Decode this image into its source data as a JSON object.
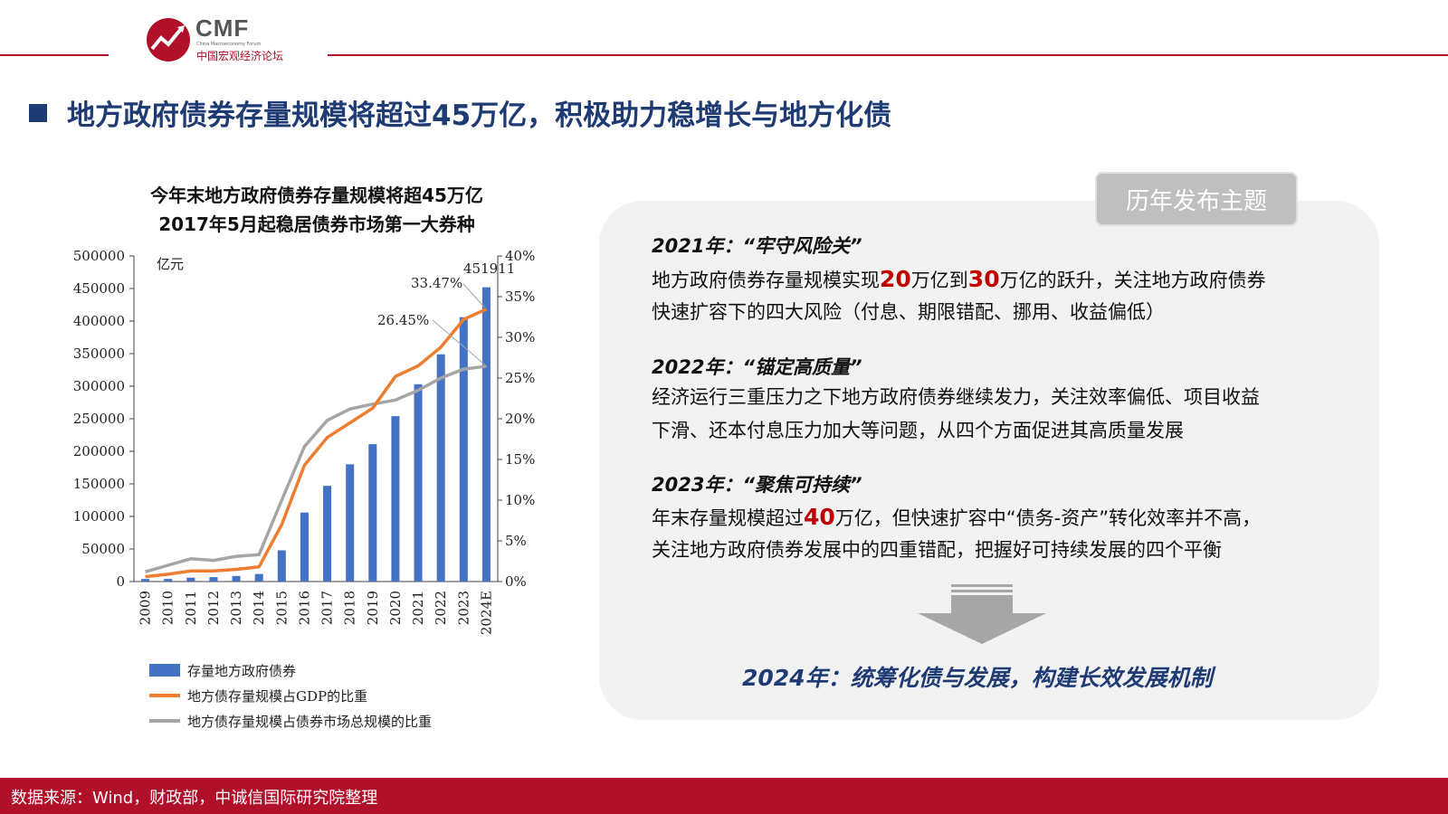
{
  "header": {
    "logo_text": "CMF",
    "logo_subtitle": "China Macroeconomy Forum",
    "logo_cn": "中国宏观经济论坛",
    "title": "地方政府债券存量规模将超过45万亿，积极助力稳增长与地方化债"
  },
  "colors": {
    "brand_red": "#b0102a",
    "navy": "#1f3b73",
    "bar_blue": "#4472c4",
    "gdp_orange": "#ed7d31",
    "bond_gray": "#a5a5a5",
    "highlight_red": "#c00000"
  },
  "chart_data": {
    "type": "bar",
    "title_line1": "今年末地方政府债券存量规模将超45万亿",
    "title_line2": "2017年5月起稳居债券市场第一大券种",
    "unit_label": "亿元",
    "categories": [
      "2009",
      "2010",
      "2011",
      "2012",
      "2013",
      "2014",
      "2015",
      "2016",
      "2017",
      "2018",
      "2019",
      "2020",
      "2021",
      "2022",
      "2023",
      "2024E"
    ],
    "left_axis": {
      "ylim": [
        0,
        500000
      ],
      "ticks": [
        "0",
        "50000",
        "100000",
        "150000",
        "200000",
        "250000",
        "300000",
        "350000",
        "400000",
        "450000",
        "500000"
      ]
    },
    "right_axis": {
      "ylim": [
        0,
        40
      ],
      "ticks": [
        "0%",
        "5%",
        "10%",
        "15%",
        "20%",
        "25%",
        "30%",
        "35%",
        "40%"
      ]
    },
    "series": [
      {
        "name": "存量地方政府债券",
        "type": "bar",
        "axis": "left",
        "values": [
          4000,
          4000,
          6000,
          6700,
          8600,
          11600,
          48000,
          106000,
          147000,
          180000,
          211000,
          254000,
          303000,
          349000,
          406000,
          451911
        ]
      },
      {
        "name": "地方债存量规模占GDP的比重",
        "type": "line",
        "axis": "right",
        "values": [
          0.6,
          0.9,
          1.3,
          1.3,
          1.5,
          1.8,
          7.0,
          14.3,
          17.7,
          19.5,
          21.3,
          25.2,
          26.5,
          28.8,
          32.2,
          33.47
        ]
      },
      {
        "name": "地方债存量规模占债券市场总规模的比重",
        "type": "line",
        "axis": "right",
        "values": [
          1.2,
          2.0,
          2.8,
          2.6,
          3.1,
          3.3,
          10.0,
          16.6,
          19.8,
          21.2,
          21.8,
          22.3,
          23.5,
          25.0,
          26.1,
          26.45
        ]
      }
    ],
    "annotations": [
      "451911",
      "33.47%",
      "26.45%"
    ]
  },
  "panel": {
    "badge": "历年发布主题",
    "items": [
      {
        "heading": "2021年：“牢守风险关”",
        "line1_a": "地方政府债券存量规模实现",
        "line1_h1": "20",
        "line1_b": "万亿到",
        "line1_h2": "30",
        "line1_c": "万亿的跃升，关注地方政府债券",
        "line2": "快速扩容下的四大风险（付息、期限错配、挪用、收益偏低）"
      },
      {
        "heading": "2022年：“锚定高质量”",
        "line1": "经济运行三重压力之下地方政府债券继续发力，关注效率偏低、项目收益",
        "line2": "下滑、还本付息压力加大等问题，从四个方面促进其高质量发展"
      },
      {
        "heading": "2023年：“聚焦可持续”",
        "line1_a": "年末存量规模超过",
        "line1_h1": "40",
        "line1_b": "万亿，但快速扩容中“债务-资产”转化效率并不高，",
        "line2": "关注地方政府债券发展中的四重错配，把握好可持续发展的四个平衡"
      }
    ],
    "conclusion": "2024年：统筹化债与发展，构建长效发展机制"
  },
  "footer": {
    "source": "数据来源：Wind，财政部，中诚信国际研究院整理"
  }
}
